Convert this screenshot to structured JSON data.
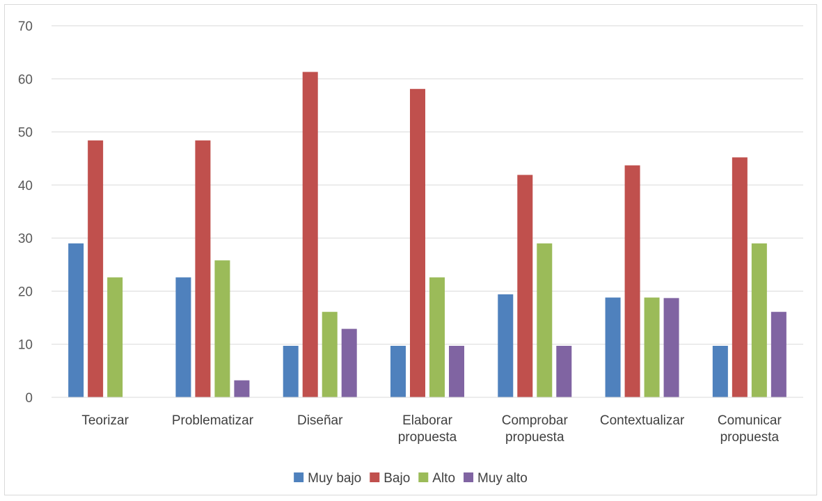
{
  "chart_data": {
    "type": "bar",
    "title": "",
    "xlabel": "",
    "ylabel": "",
    "ylim": [
      0,
      70
    ],
    "yticks": [
      0,
      10,
      20,
      30,
      40,
      50,
      60,
      70
    ],
    "grid": true,
    "legend_position": "bottom",
    "categories": [
      [
        "Teorizar"
      ],
      [
        "Problematizar"
      ],
      [
        "Diseñar"
      ],
      [
        "Elaborar",
        "propuesta"
      ],
      [
        "Comprobar",
        "propuesta"
      ],
      [
        "Contextualizar"
      ],
      [
        "Comunicar",
        "propuesta"
      ]
    ],
    "series": [
      {
        "name": "Muy bajo",
        "color": "#4f81bd",
        "values": [
          29,
          22.6,
          9.7,
          9.7,
          19.4,
          18.8,
          9.7
        ]
      },
      {
        "name": "Bajo",
        "color": "#c0504d",
        "values": [
          48.4,
          48.4,
          61.3,
          58.1,
          41.9,
          43.7,
          45.2
        ]
      },
      {
        "name": "Alto",
        "color": "#9bbb59",
        "values": [
          22.6,
          25.8,
          16.1,
          22.6,
          29,
          18.8,
          29
        ]
      },
      {
        "name": "Muy alto",
        "color": "#8064a2",
        "values": [
          0,
          3.2,
          12.9,
          9.7,
          9.7,
          18.7,
          16.1
        ]
      }
    ]
  }
}
